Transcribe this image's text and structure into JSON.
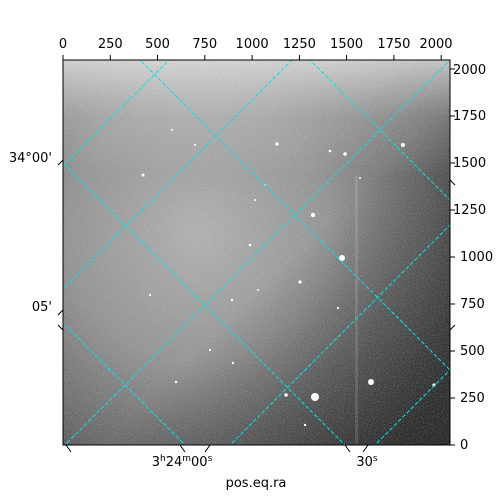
{
  "figure": {
    "x_axis_label": "pos.eq.ra",
    "top_axis_ticks": [
      "0",
      "250",
      "500",
      "750",
      "1000",
      "1250",
      "1500",
      "1750",
      "2000"
    ],
    "right_axis_ticks": [
      "0",
      "250",
      "500",
      "750",
      "1000",
      "1250",
      "1500",
      "1750",
      "2000"
    ],
    "ra_tick_labels": [
      {
        "hours": "3",
        "minutes": "24",
        "seconds": "00",
        "text": "3h24m00s"
      },
      {
        "hours": "",
        "minutes": "",
        "seconds": "30",
        "text": "30s"
      }
    ],
    "dec_tick_labels": [
      "34°00'",
      "05'"
    ],
    "grid_color": "#00e5e5",
    "image_colormap": "grayscale"
  }
}
